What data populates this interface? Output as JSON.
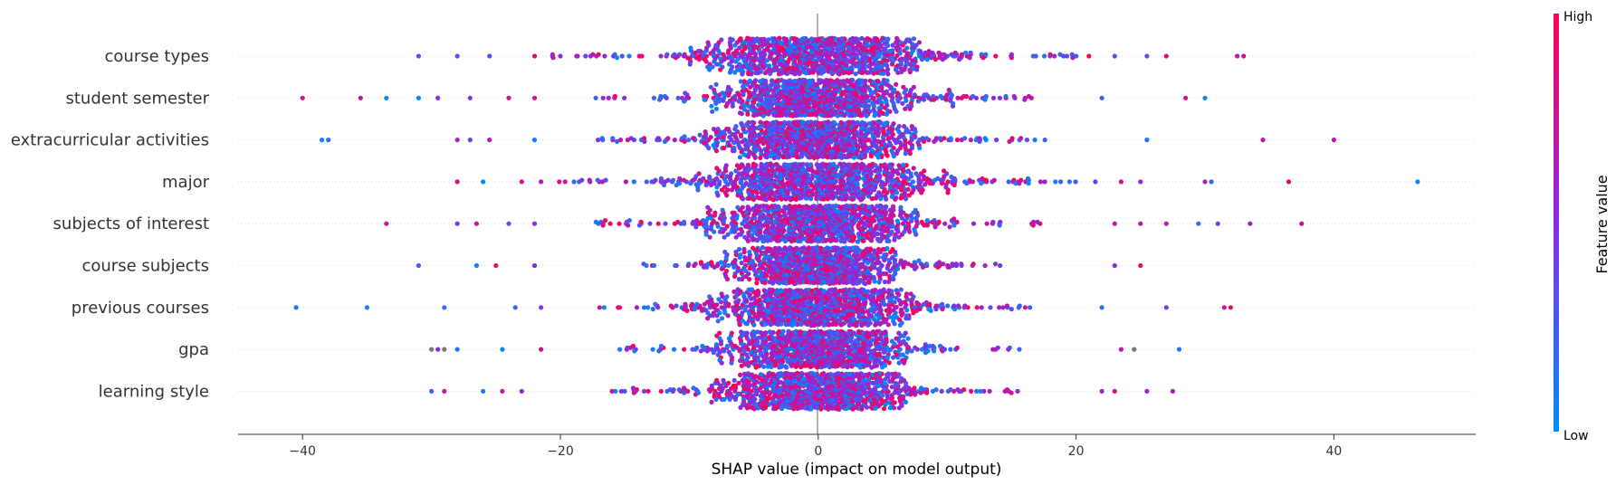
{
  "chart_data": {
    "type": "scatter",
    "subtype": "shap-beeswarm",
    "xlabel": "SHAP value (impact on model output)",
    "xlim": [
      -45,
      51
    ],
    "xticks": [
      -40,
      -20,
      0,
      20,
      40
    ],
    "features": [
      {
        "name": "course types",
        "spread": 6.5,
        "outliers": [
          -31,
          -28,
          -25.5,
          -22,
          -20,
          15,
          18,
          21,
          23,
          25.5,
          27,
          32.5,
          33
        ]
      },
      {
        "name": "student semester",
        "spread": 5.5,
        "outliers": [
          -40,
          -35.5,
          -33.5,
          -31,
          -29.5,
          -27,
          -24,
          -22,
          22,
          28.5,
          30
        ]
      },
      {
        "name": "extracurricular activities",
        "spread": 5.5,
        "outliers": [
          -38.5,
          -38,
          -28,
          -27,
          -25.5,
          -22,
          25.5,
          34.5,
          40
        ]
      },
      {
        "name": "major",
        "spread": 6.5,
        "outliers": [
          -28,
          -26,
          -23,
          -21.5,
          21.5,
          23.5,
          25,
          30,
          30.5,
          36.5,
          46.5
        ]
      },
      {
        "name": "subjects of interest",
        "spread": 5.5,
        "outliers": [
          -33.5,
          -28,
          -26.5,
          -24,
          -22,
          23,
          25,
          27,
          29.5,
          31,
          33.5,
          37.5
        ]
      },
      {
        "name": "course subjects",
        "spread": 4.5,
        "outliers": [
          -31,
          -26.5,
          -25,
          -22,
          23,
          25
        ]
      },
      {
        "name": "previous courses",
        "spread": 5.5,
        "outliers": [
          -40.5,
          -35,
          -29,
          -23.5,
          -21.5,
          22,
          27,
          31.5,
          32
        ]
      },
      {
        "name": "gpa",
        "spread": 5,
        "outliers": [
          -30,
          -29.5,
          -29,
          -28,
          -24.5,
          -21.5,
          23.5,
          24.5,
          28
        ]
      },
      {
        "name": "learning style",
        "spread": 5,
        "outliers": [
          -30,
          -29,
          -26,
          -24.5,
          -23,
          22,
          23,
          25.5,
          27.5
        ]
      }
    ],
    "colorbar": {
      "title": "Feature value",
      "high_label": "High",
      "low_label": "Low",
      "high_color": "#ff0052",
      "mid_color": "#8a2be2",
      "low_color": "#008bfb"
    },
    "missing_value_color": "#777777",
    "zero_line": true,
    "grid": false,
    "legend": "colorbar-right"
  }
}
